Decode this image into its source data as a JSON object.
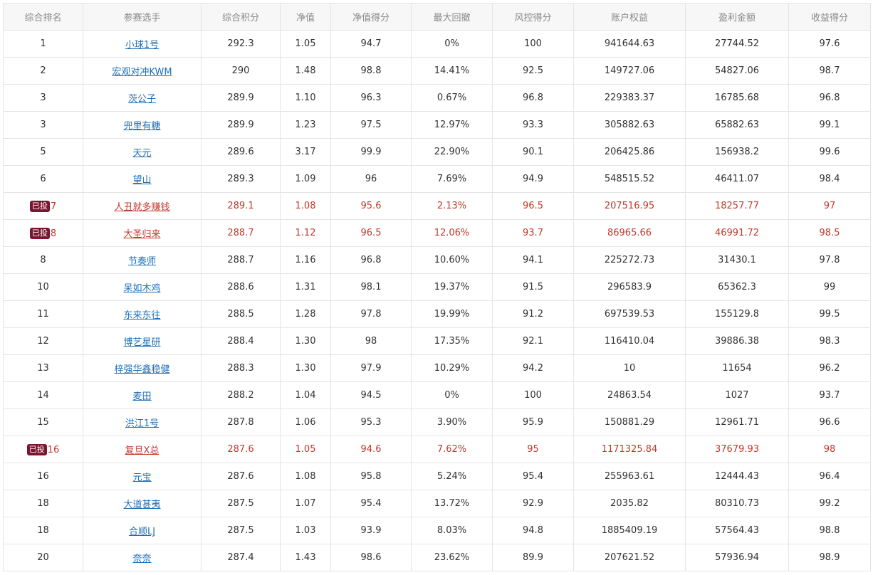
{
  "table": {
    "headers": [
      "综合排名",
      "参赛选手",
      "综合积分",
      "净值",
      "净值得分",
      "最大回撤",
      "风控得分",
      "账户权益",
      "盈利金额",
      "收益得分"
    ],
    "rows": [
      {
        "rank": "1",
        "badge": "",
        "player": "小球1号",
        "score": "292.3",
        "nav": "1.05",
        "nav_score": "94.7",
        "max_dd": "0%",
        "risk_score": "100",
        "equity": "941644.63",
        "profit": "27744.52",
        "return_score": "97.6"
      },
      {
        "rank": "2",
        "badge": "",
        "player": "宏观对冲KWM",
        "score": "290",
        "nav": "1.48",
        "nav_score": "98.8",
        "max_dd": "14.41%",
        "risk_score": "92.5",
        "equity": "149727.06",
        "profit": "54827.06",
        "return_score": "98.7"
      },
      {
        "rank": "3",
        "badge": "",
        "player": "茨公子",
        "score": "289.9",
        "nav": "1.10",
        "nav_score": "96.3",
        "max_dd": "0.67%",
        "risk_score": "96.8",
        "equity": "229383.37",
        "profit": "16785.68",
        "return_score": "96.8"
      },
      {
        "rank": "3",
        "badge": "",
        "player": "兜里有糖",
        "score": "289.9",
        "nav": "1.23",
        "nav_score": "97.5",
        "max_dd": "12.97%",
        "risk_score": "93.3",
        "equity": "305882.63",
        "profit": "65882.63",
        "return_score": "99.1"
      },
      {
        "rank": "5",
        "badge": "",
        "player": "天元",
        "score": "289.6",
        "nav": "3.17",
        "nav_score": "99.9",
        "max_dd": "22.90%",
        "risk_score": "90.1",
        "equity": "206425.86",
        "profit": "156938.2",
        "return_score": "99.6"
      },
      {
        "rank": "6",
        "badge": "",
        "player": "望山",
        "score": "289.3",
        "nav": "1.09",
        "nav_score": "96",
        "max_dd": "7.69%",
        "risk_score": "94.9",
        "equity": "548515.52",
        "profit": "46411.07",
        "return_score": "98.4"
      },
      {
        "rank": "7",
        "badge": "已投",
        "player": "人丑就多赚钱",
        "score": "289.1",
        "nav": "1.08",
        "nav_score": "95.6",
        "max_dd": "2.13%",
        "risk_score": "96.5",
        "equity": "207516.95",
        "profit": "18257.77",
        "return_score": "97"
      },
      {
        "rank": "8",
        "badge": "已投",
        "player": "大圣归来",
        "score": "288.7",
        "nav": "1.12",
        "nav_score": "96.5",
        "max_dd": "12.06%",
        "risk_score": "93.7",
        "equity": "86965.66",
        "profit": "46991.72",
        "return_score": "98.5"
      },
      {
        "rank": "8",
        "badge": "",
        "player": "节奏师",
        "score": "288.7",
        "nav": "1.16",
        "nav_score": "96.8",
        "max_dd": "10.60%",
        "risk_score": "94.1",
        "equity": "225272.73",
        "profit": "31430.1",
        "return_score": "97.8"
      },
      {
        "rank": "10",
        "badge": "",
        "player": "呆如木鸡",
        "score": "288.6",
        "nav": "1.31",
        "nav_score": "98.1",
        "max_dd": "19.37%",
        "risk_score": "91.5",
        "equity": "296583.9",
        "profit": "65362.3",
        "return_score": "99"
      },
      {
        "rank": "11",
        "badge": "",
        "player": "东来东往",
        "score": "288.5",
        "nav": "1.28",
        "nav_score": "97.8",
        "max_dd": "19.99%",
        "risk_score": "91.2",
        "equity": "697539.53",
        "profit": "155129.8",
        "return_score": "99.5"
      },
      {
        "rank": "12",
        "badge": "",
        "player": "博艺星研",
        "score": "288.4",
        "nav": "1.30",
        "nav_score": "98",
        "max_dd": "17.35%",
        "risk_score": "92.1",
        "equity": "116410.04",
        "profit": "39886.38",
        "return_score": "98.3"
      },
      {
        "rank": "13",
        "badge": "",
        "player": "梓强华鑫稳健",
        "score": "288.3",
        "nav": "1.30",
        "nav_score": "97.9",
        "max_dd": "10.29%",
        "risk_score": "94.2",
        "equity": "10",
        "profit": "11654",
        "return_score": "96.2"
      },
      {
        "rank": "14",
        "badge": "",
        "player": "麦田",
        "score": "288.2",
        "nav": "1.04",
        "nav_score": "94.5",
        "max_dd": "0%",
        "risk_score": "100",
        "equity": "24863.54",
        "profit": "1027",
        "return_score": "93.7"
      },
      {
        "rank": "15",
        "badge": "",
        "player": "洪江1号",
        "score": "287.8",
        "nav": "1.06",
        "nav_score": "95.3",
        "max_dd": "3.90%",
        "risk_score": "95.9",
        "equity": "150881.29",
        "profit": "12961.71",
        "return_score": "96.6"
      },
      {
        "rank": "16",
        "badge": "已投",
        "player": "复旦X总",
        "score": "287.6",
        "nav": "1.05",
        "nav_score": "94.6",
        "max_dd": "7.62%",
        "risk_score": "95",
        "equity": "1171325.84",
        "profit": "37679.93",
        "return_score": "98"
      },
      {
        "rank": "16",
        "badge": "",
        "player": "元宝",
        "score": "287.6",
        "nav": "1.08",
        "nav_score": "95.8",
        "max_dd": "5.24%",
        "risk_score": "95.4",
        "equity": "255963.61",
        "profit": "12444.43",
        "return_score": "96.4"
      },
      {
        "rank": "18",
        "badge": "",
        "player": "大道甚夷",
        "score": "287.5",
        "nav": "1.07",
        "nav_score": "95.4",
        "max_dd": "13.72%",
        "risk_score": "92.9",
        "equity": "2035.82",
        "profit": "80310.73",
        "return_score": "99.2"
      },
      {
        "rank": "18",
        "badge": "",
        "player": "合顺LJ",
        "score": "287.5",
        "nav": "1.03",
        "nav_score": "93.9",
        "max_dd": "8.03%",
        "risk_score": "94.8",
        "equity": "1885409.19",
        "profit": "57564.43",
        "return_score": "98.8"
      },
      {
        "rank": "20",
        "badge": "",
        "player": "奈奈",
        "score": "287.4",
        "nav": "1.43",
        "nav_score": "98.6",
        "max_dd": "23.62%",
        "risk_score": "89.9",
        "equity": "207621.52",
        "profit": "57936.94",
        "return_score": "98.9"
      }
    ]
  },
  "colors": {
    "header_bg": "#f7f7f7",
    "link": "#1f6fb5",
    "invested_text": "#c0392b",
    "badge_bg": "#7a1630",
    "border": "#e4e4e4"
  }
}
